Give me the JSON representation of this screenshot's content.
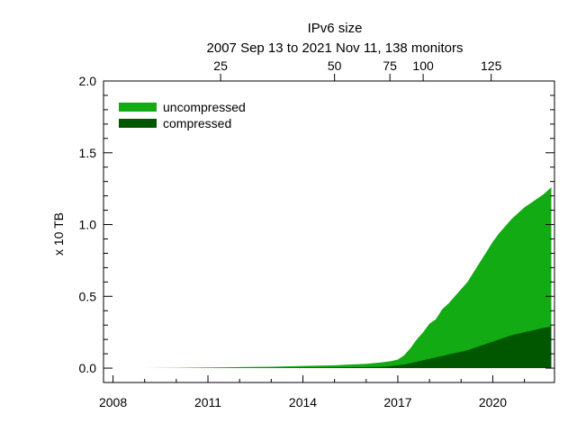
{
  "chart_data": {
    "type": "area",
    "title": "IPv6 size",
    "subtitle": "2007 Sep 13 to 2021 Nov 11, 138 monitors",
    "xlabel": "",
    "ylabel": "x 10 TB",
    "x_ticks": [
      "2008",
      "2011",
      "2014",
      "2017",
      "2020"
    ],
    "x_tick_values": [
      2008,
      2011,
      2014,
      2017,
      2020
    ],
    "xlim": [
      2007.7,
      2021.95
    ],
    "ylim": [
      -0.1,
      2.0
    ],
    "y_ticks": [
      "0.0",
      "0.5",
      "1.0",
      "1.5",
      "2.0"
    ],
    "y_tick_values": [
      0.0,
      0.5,
      1.0,
      1.5,
      2.0
    ],
    "top_axis": {
      "label_ticks": [
        "25",
        "50",
        "75",
        "100",
        "125"
      ],
      "label_tick_years": [
        2011.4,
        2015.0,
        2016.75,
        2017.8,
        2019.95
      ]
    },
    "legend": {
      "placement": "top-left"
    },
    "grid": false,
    "x": [
      2009.0,
      2010.0,
      2011.0,
      2012.0,
      2013.0,
      2014.0,
      2015.0,
      2016.0,
      2016.5,
      2016.8,
      2017.0,
      2017.2,
      2017.4,
      2017.6,
      2017.8,
      2018.0,
      2018.2,
      2018.4,
      2018.6,
      2018.8,
      2019.0,
      2019.2,
      2019.4,
      2019.6,
      2019.8,
      2020.0,
      2020.2,
      2020.4,
      2020.6,
      2020.8,
      2021.0,
      2021.2,
      2021.4,
      2021.6,
      2021.85
    ],
    "series": [
      {
        "name": "uncompressed",
        "color": "#13ab13",
        "values": [
          0.0,
          0.002,
          0.004,
          0.007,
          0.01,
          0.015,
          0.02,
          0.03,
          0.04,
          0.05,
          0.06,
          0.09,
          0.14,
          0.2,
          0.25,
          0.31,
          0.34,
          0.41,
          0.45,
          0.5,
          0.55,
          0.6,
          0.67,
          0.74,
          0.81,
          0.88,
          0.94,
          0.99,
          1.04,
          1.08,
          1.12,
          1.15,
          1.18,
          1.21,
          1.26
        ]
      },
      {
        "name": "compressed",
        "color": "#005700",
        "values": [
          0.0,
          0.0005,
          0.001,
          0.002,
          0.003,
          0.004,
          0.005,
          0.007,
          0.01,
          0.015,
          0.02,
          0.025,
          0.035,
          0.045,
          0.055,
          0.065,
          0.075,
          0.085,
          0.095,
          0.105,
          0.115,
          0.125,
          0.14,
          0.155,
          0.17,
          0.185,
          0.2,
          0.215,
          0.23,
          0.24,
          0.25,
          0.26,
          0.27,
          0.28,
          0.29
        ]
      }
    ]
  }
}
